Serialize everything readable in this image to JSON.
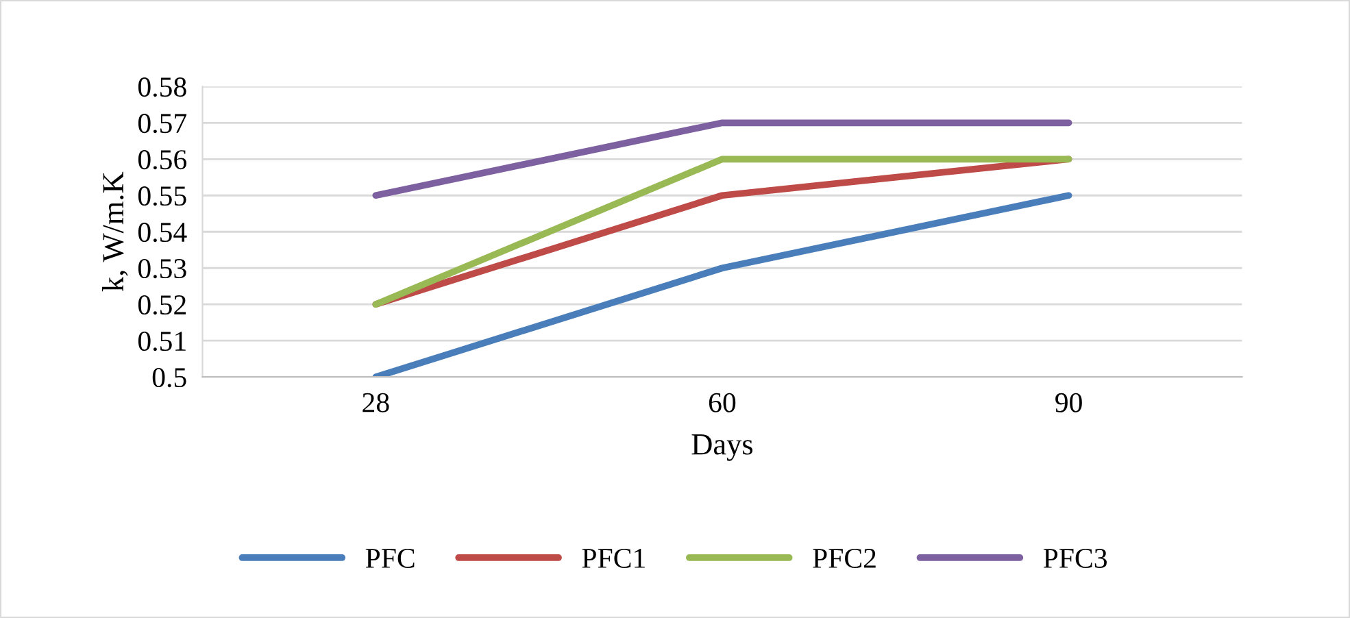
{
  "chart_data": {
    "type": "line",
    "xlabel": "Days",
    "ylabel": "k, W/m.K",
    "categories": [
      "28",
      "60",
      "90"
    ],
    "series": [
      {
        "name": "PFC",
        "color": "#4a7ebb",
        "values": [
          0.5,
          0.53,
          0.55
        ]
      },
      {
        "name": "PFC1",
        "color": "#be4b48",
        "values": [
          0.52,
          0.55,
          0.56
        ]
      },
      {
        "name": "PFC2",
        "color": "#98b954",
        "values": [
          0.52,
          0.56,
          0.56
        ]
      },
      {
        "name": "PFC3",
        "color": "#7d60a0",
        "values": [
          0.55,
          0.57,
          0.57
        ]
      }
    ],
    "ylim": [
      0.5,
      0.58
    ],
    "yticks": [
      0.5,
      0.51,
      0.52,
      0.53,
      0.54,
      0.55,
      0.56,
      0.57,
      0.58
    ],
    "grid": "y",
    "legend": "bottom",
    "marker": "none",
    "line_style": "solid"
  }
}
